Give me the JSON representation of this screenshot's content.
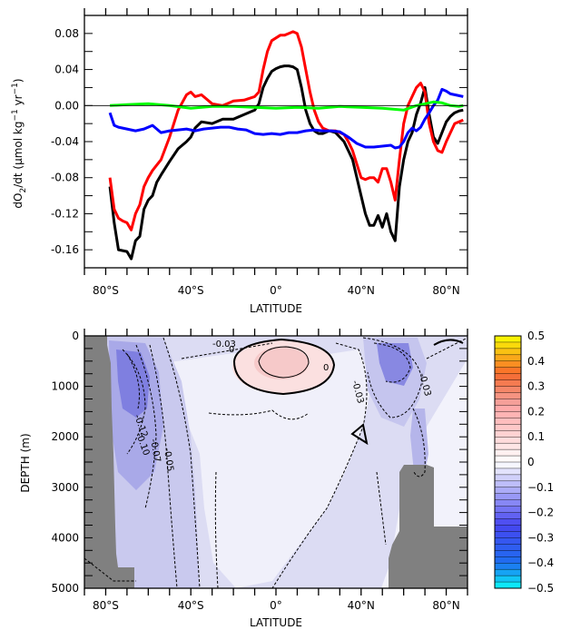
{
  "chart_data": [
    {
      "type": "line",
      "xlabel": "LATITUDE",
      "ylabel_prefix": "dO",
      "ylabel_sub": "2",
      "ylabel_mid": "/dt (",
      "ylabel_mu": "μ",
      "ylabel_rest": "mol kg",
      "ylabel_sup1": "−1",
      "ylabel_yr": " yr",
      "ylabel_sup2": "−1",
      "ylabel_close": ")",
      "xlim": [
        -90,
        90
      ],
      "ylim": [
        -0.18,
        0.1
      ],
      "xticks": [
        -80,
        -40,
        0,
        40,
        80
      ],
      "xtick_labels": [
        "80°S",
        "40°S",
        "0°",
        "40°N",
        "80°N"
      ],
      "yticks": [
        0.08,
        0.04,
        0.0,
        -0.04,
        -0.08,
        -0.12,
        -0.16
      ],
      "ytick_labels": [
        "0.08",
        "0.04",
        "0.00",
        "-0.04",
        "-0.08",
        "-0.12",
        "-0.16"
      ],
      "zero_line": true,
      "series": [
        {
          "color": "#000000",
          "x": [
            -78,
            -76,
            -74,
            -72,
            -70,
            -68,
            -66,
            -64,
            -62,
            -60,
            -58,
            -56,
            -54,
            -50,
            -46,
            -42,
            -40,
            -38,
            -35,
            -30,
            -25,
            -20,
            -15,
            -10,
            -8,
            -6,
            -4,
            -2,
            0,
            2,
            4,
            6,
            8,
            10,
            12,
            14,
            16,
            18,
            20,
            22,
            25,
            28,
            32,
            34,
            36,
            38,
            40,
            42,
            44,
            46,
            48,
            50,
            52,
            54,
            56,
            58,
            60,
            62,
            64,
            66,
            68,
            70,
            72,
            74,
            76,
            78,
            80,
            82,
            84,
            86,
            88
          ],
          "y": [
            -0.09,
            -0.13,
            -0.16,
            -0.161,
            -0.162,
            -0.17,
            -0.15,
            -0.145,
            -0.115,
            -0.105,
            -0.1,
            -0.085,
            -0.077,
            -0.062,
            -0.048,
            -0.04,
            -0.035,
            -0.025,
            -0.018,
            -0.02,
            -0.015,
            -0.015,
            -0.01,
            -0.005,
            0.002,
            0.02,
            0.03,
            0.038,
            0.041,
            0.043,
            0.044,
            0.044,
            0.043,
            0.04,
            0.02,
            -0.005,
            -0.02,
            -0.028,
            -0.031,
            -0.031,
            -0.028,
            -0.03,
            -0.04,
            -0.05,
            -0.06,
            -0.08,
            -0.1,
            -0.12,
            -0.133,
            -0.133,
            -0.122,
            -0.135,
            -0.12,
            -0.14,
            -0.15,
            -0.09,
            -0.06,
            -0.04,
            -0.03,
            -0.01,
            0.003,
            0.02,
            -0.01,
            -0.035,
            -0.042,
            -0.03,
            -0.018,
            -0.012,
            -0.008,
            -0.006,
            -0.005
          ]
        },
        {
          "color": "#ff0000",
          "x": [
            -78,
            -76,
            -74,
            -72,
            -70,
            -68,
            -66,
            -64,
            -62,
            -60,
            -58,
            -56,
            -54,
            -50,
            -46,
            -42,
            -40,
            -38,
            -35,
            -30,
            -25,
            -20,
            -15,
            -10,
            -8,
            -6,
            -4,
            -2,
            0,
            2,
            4,
            6,
            8,
            10,
            12,
            14,
            16,
            18,
            20,
            22,
            25,
            28,
            32,
            34,
            36,
            38,
            40,
            42,
            44,
            46,
            48,
            50,
            52,
            54,
            56,
            58,
            60,
            62,
            64,
            66,
            68,
            70,
            72,
            74,
            76,
            78,
            80,
            82,
            84,
            86,
            88
          ],
          "y": [
            -0.08,
            -0.115,
            -0.125,
            -0.128,
            -0.13,
            -0.138,
            -0.12,
            -0.11,
            -0.09,
            -0.08,
            -0.072,
            -0.066,
            -0.06,
            -0.035,
            -0.005,
            0.012,
            0.015,
            0.01,
            0.012,
            0.002,
            0.0,
            0.005,
            0.006,
            0.01,
            0.015,
            0.04,
            0.06,
            0.072,
            0.075,
            0.078,
            0.078,
            0.08,
            0.082,
            0.08,
            0.065,
            0.04,
            0.015,
            -0.005,
            -0.018,
            -0.025,
            -0.028,
            -0.028,
            -0.032,
            -0.04,
            -0.05,
            -0.065,
            -0.08,
            -0.082,
            -0.08,
            -0.08,
            -0.085,
            -0.07,
            -0.07,
            -0.085,
            -0.105,
            -0.06,
            -0.02,
            0.0,
            0.01,
            0.02,
            0.025,
            0.015,
            -0.02,
            -0.04,
            -0.05,
            -0.052,
            -0.04,
            -0.03,
            -0.02,
            -0.018,
            -0.016
          ]
        },
        {
          "color": "#0000ff",
          "x": [
            -78,
            -76,
            -74,
            -70,
            -66,
            -62,
            -58,
            -54,
            -50,
            -46,
            -42,
            -38,
            -34,
            -30,
            -26,
            -22,
            -18,
            -14,
            -10,
            -6,
            -2,
            2,
            6,
            10,
            14,
            18,
            22,
            26,
            30,
            34,
            38,
            42,
            46,
            50,
            54,
            56,
            58,
            60,
            62,
            64,
            66,
            68,
            70,
            72,
            74,
            76,
            78,
            80,
            82,
            84,
            86,
            88
          ],
          "y": [
            -0.008,
            -0.022,
            -0.024,
            -0.026,
            -0.028,
            -0.026,
            -0.022,
            -0.03,
            -0.028,
            -0.027,
            -0.026,
            -0.028,
            -0.026,
            -0.025,
            -0.024,
            -0.024,
            -0.026,
            -0.027,
            -0.031,
            -0.032,
            -0.031,
            -0.032,
            -0.03,
            -0.03,
            -0.028,
            -0.027,
            -0.028,
            -0.028,
            -0.029,
            -0.035,
            -0.042,
            -0.046,
            -0.046,
            -0.045,
            -0.044,
            -0.047,
            -0.046,
            -0.04,
            -0.03,
            -0.025,
            -0.028,
            -0.024,
            -0.015,
            -0.008,
            0.0,
            0.006,
            0.018,
            0.016,
            0.013,
            0.012,
            0.011,
            0.01
          ]
        },
        {
          "color": "#00ff00",
          "x": [
            -78,
            -70,
            -60,
            -50,
            -40,
            -30,
            -20,
            -10,
            0,
            10,
            20,
            30,
            40,
            50,
            60,
            66,
            70,
            74,
            78,
            82,
            86,
            88
          ],
          "y": [
            0.0,
            0.001,
            0.002,
            0.0,
            -0.003,
            -0.001,
            -0.001,
            -0.002,
            -0.003,
            -0.002,
            -0.003,
            -0.001,
            -0.002,
            -0.003,
            -0.005,
            0.0,
            0.002,
            0.004,
            0.003,
            0.0,
            -0.001,
            0.0
          ]
        },
        {
          "color": "#000000",
          "x": [
            -90,
            90
          ],
          "y": [
            0,
            0
          ],
          "thin": true
        }
      ]
    },
    {
      "type": "heatmap",
      "xlabel": "LATITUDE",
      "ylabel": "DEPTH (m)",
      "xlim": [
        -90,
        90
      ],
      "ylim": [
        5000,
        0
      ],
      "xticks": [
        -80,
        -40,
        0,
        40,
        80
      ],
      "xtick_labels": [
        "80°S",
        "40°S",
        "0°",
        "40°N",
        "80°N"
      ],
      "yticks": [
        0,
        1000,
        2000,
        3000,
        4000,
        5000
      ],
      "ytick_labels": [
        "0",
        "1000",
        "2000",
        "3000",
        "4000",
        "5000"
      ],
      "contour_labels": [
        "-0.03",
        "0",
        "0",
        "-0.12",
        "-0.10",
        "-0.07",
        "-0.05",
        "-0.03",
        "-0.03"
      ],
      "colorbar": {
        "range": [
          -0.5,
          0.5
        ],
        "tick_labels": [
          "0.5",
          "0.4",
          "0.3",
          "0.2",
          "0.1",
          "0",
          "−0.1",
          "−0.2",
          "−0.3",
          "−0.4",
          "−0.5"
        ],
        "tick_values": [
          0.5,
          0.4,
          0.3,
          0.2,
          0.1,
          0,
          -0.1,
          -0.2,
          -0.3,
          -0.4,
          -0.5
        ]
      },
      "land_color": "#808080"
    }
  ]
}
